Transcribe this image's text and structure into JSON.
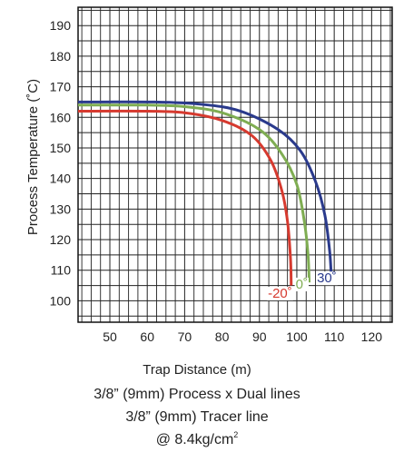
{
  "chart_data": {
    "type": "line",
    "xlabel": "Trap Distance (m)",
    "ylabel": "Process Temperature (˚C)",
    "x_ticks": [
      50,
      60,
      70,
      80,
      90,
      100,
      110,
      120
    ],
    "y_ticks": [
      100,
      110,
      120,
      130,
      140,
      150,
      160,
      170,
      180,
      190
    ],
    "xlim": [
      41.5,
      125.5
    ],
    "ylim": [
      93,
      196
    ],
    "grid": true,
    "series": [
      {
        "name": "-20˚",
        "color": "#d63a2f",
        "points": [
          [
            41.5,
            162
          ],
          [
            60,
            162
          ],
          [
            70,
            161.5
          ],
          [
            80,
            159
          ],
          [
            88,
            154
          ],
          [
            93,
            146
          ],
          [
            96,
            136
          ],
          [
            97.5,
            126
          ],
          [
            98.3,
            114
          ],
          [
            98.5,
            105
          ]
        ]
      },
      {
        "name": "0˚",
        "color": "#7fad52",
        "points": [
          [
            41.5,
            164
          ],
          [
            60,
            164
          ],
          [
            70,
            163.5
          ],
          [
            80,
            161.5
          ],
          [
            90,
            156
          ],
          [
            96,
            148
          ],
          [
            100,
            138
          ],
          [
            102,
            126
          ],
          [
            103,
            115
          ],
          [
            103.3,
            106
          ]
        ]
      },
      {
        "name": "30˚",
        "color": "#2a3a8c",
        "points": [
          [
            41.5,
            165
          ],
          [
            62,
            165
          ],
          [
            75,
            164.2
          ],
          [
            85,
            162
          ],
          [
            95,
            156
          ],
          [
            101,
            149
          ],
          [
            105,
            139
          ],
          [
            107.5,
            128
          ],
          [
            108.8,
            116
          ],
          [
            109.2,
            108
          ]
        ]
      }
    ],
    "annotations": [
      {
        "text": "-20˚",
        "color": "#d63a2f",
        "x": 95.5,
        "y": 101
      },
      {
        "text": "0˚",
        "color": "#7fad52",
        "x": 101.3,
        "y": 104
      },
      {
        "text": "30˚",
        "color": "#2a3a8c",
        "x": 108,
        "y": 106
      }
    ]
  },
  "caption": {
    "line1": "3/8” (9mm) Process x Dual lines",
    "line2": "3/8” (9mm) Tracer line",
    "line3": "@ 8.4kg/cm",
    "line3_sup": "2"
  }
}
